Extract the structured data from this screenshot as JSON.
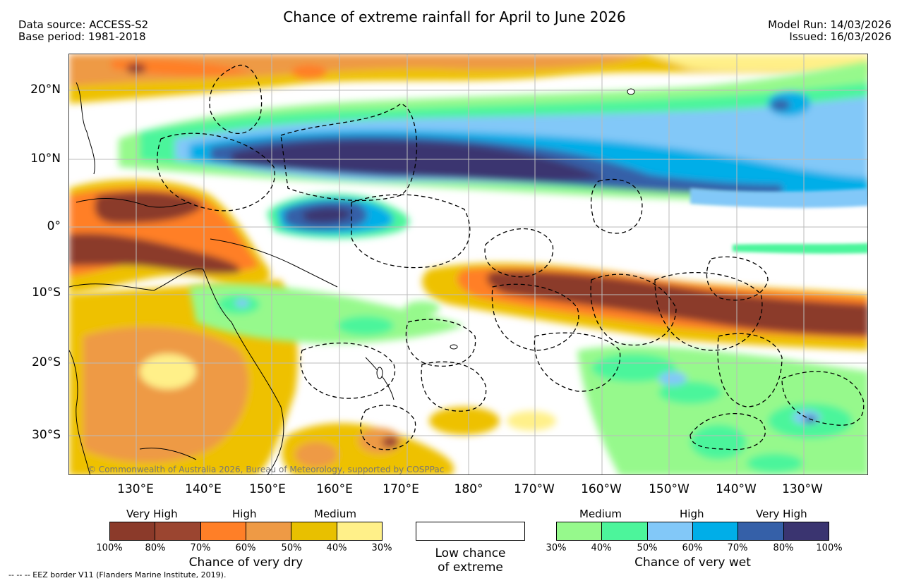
{
  "title": "Chance of extreme rainfall for April to June 2026",
  "meta_left": {
    "data_source": "Data source: ACCESS-S2",
    "base_period": "Base period: 1981-2018"
  },
  "meta_right": {
    "model_run": "Model Run: 14/03/2026",
    "issued": "Issued: 16/03/2026"
  },
  "map": {
    "lat_labels": [
      "20°N",
      "10°N",
      "0°",
      "10°S",
      "20°S",
      "30°S"
    ],
    "lon_labels": [
      "130°E",
      "140°E",
      "150°E",
      "160°E",
      "170°E",
      "180°",
      "170°W",
      "160°W",
      "150°W",
      "140°W",
      "130°W"
    ],
    "copyright": "© Commonwealth of Australia 2026, Bureau of Meteorology, supported by COSPPac"
  },
  "legend_dry": {
    "categories": [
      "Very High",
      "High",
      "Medium"
    ],
    "colors": [
      "#8b3a2a",
      "#9b4530",
      "#ff7f27",
      "#ee9a45",
      "#e8c000",
      "#fff089"
    ],
    "ticks": [
      "100%",
      "80%",
      "70%",
      "60%",
      "50%",
      "40%",
      "30%"
    ],
    "caption": "Chance of very dry"
  },
  "legend_low": {
    "line1": "Low chance",
    "line2": "of extreme"
  },
  "legend_wet": {
    "categories": [
      "Medium",
      "High",
      "Very High"
    ],
    "colors": [
      "#96f98c",
      "#4cf59b",
      "#82c8f8",
      "#00aee8",
      "#3560a8",
      "#3a3470"
    ],
    "ticks": [
      "30%",
      "40%",
      "50%",
      "60%",
      "70%",
      "80%",
      "100%"
    ],
    "caption": "Chance of very wet"
  },
  "footer": "-- -- -- EEZ border V11 (Flanders Marine Institute, 2019)."
}
